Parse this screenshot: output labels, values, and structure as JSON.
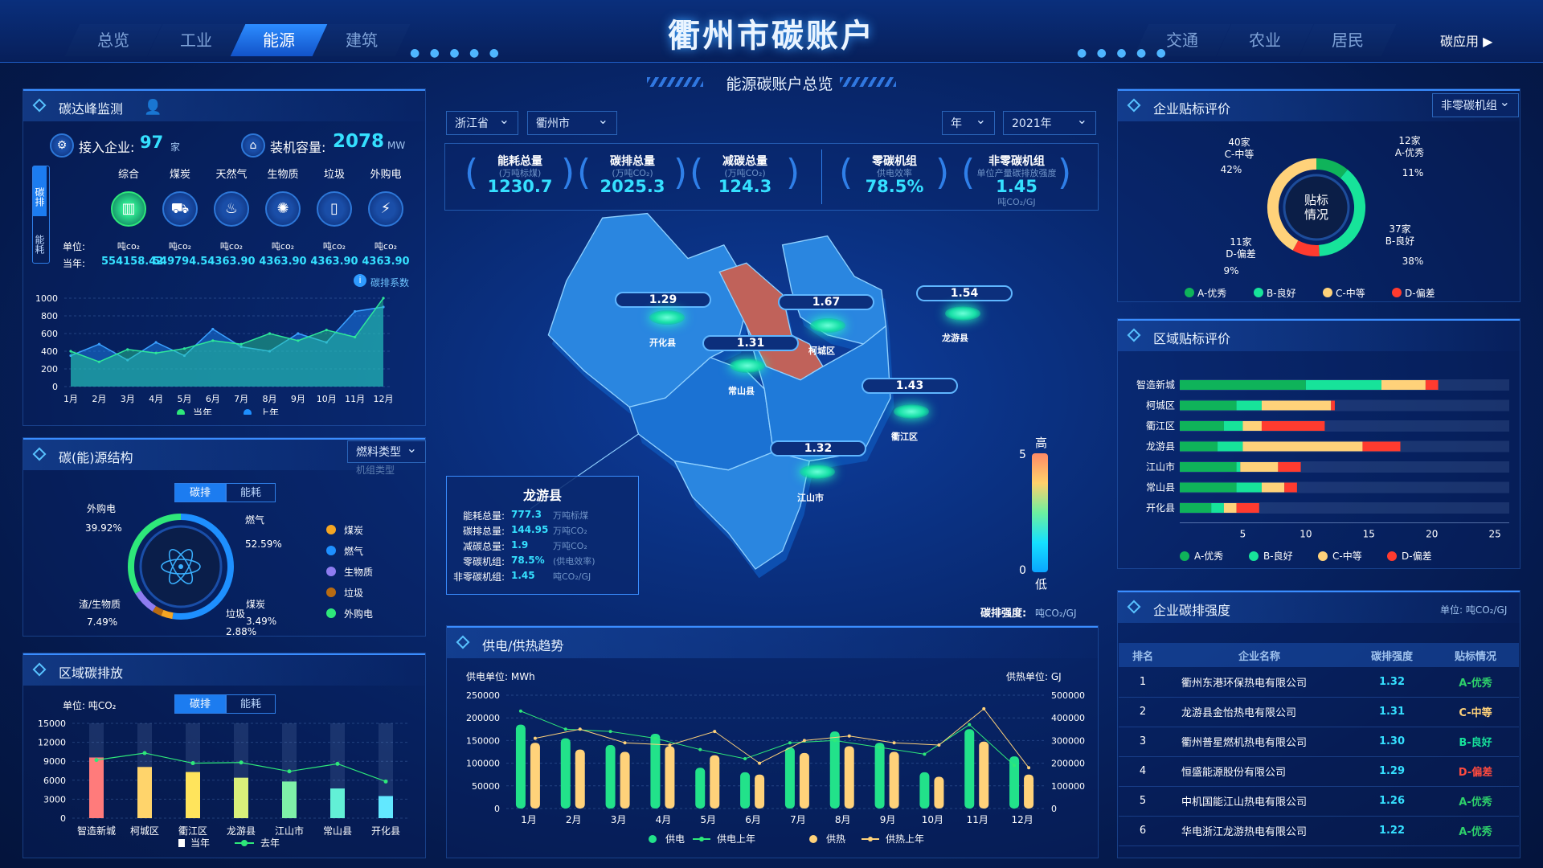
{
  "header": {
    "title": "衢州市碳账户",
    "tabs_left": [
      "总览",
      "工业",
      "能源",
      "建筑"
    ],
    "tabs_right": [
      "交通",
      "农业",
      "居民"
    ],
    "active_tab": "能源",
    "app_link": "碳应用 ▶",
    "subtitle": "能源碳账户总览"
  },
  "carbon_peak": {
    "title": "碳达峰监测",
    "access_label": "接入企业:",
    "access_value": "97",
    "access_unit": "家",
    "capacity_label": "装机容量:",
    "capacity_value": "2078",
    "capacity_unit": "MW",
    "side_tabs": [
      "碳排",
      "能耗"
    ],
    "sources": [
      {
        "name": "综合",
        "icon": "composite-icon",
        "val": "554158.42"
      },
      {
        "name": "煤炭",
        "icon": "coal-icon",
        "val": "549794.5"
      },
      {
        "name": "天然气",
        "icon": "flame-icon",
        "val": "4363.90"
      },
      {
        "name": "生物质",
        "icon": "biomass-icon",
        "val": "4363.90"
      },
      {
        "name": "垃圾",
        "icon": "trash-icon",
        "val": "4363.90"
      },
      {
        "name": "外购电",
        "icon": "lightning-icon",
        "val": "4363.90"
      }
    ],
    "unit_label": "单位:",
    "unit": "吨co₂",
    "current_label": "当年:",
    "coef_label": "碳排系数"
  },
  "trend": {
    "months": [
      "1月",
      "2月",
      "3月",
      "4月",
      "5月",
      "6月",
      "7月",
      "8月",
      "9月",
      "10月",
      "11月",
      "12月"
    ],
    "yticks": [
      "1000",
      "800",
      "600",
      "400",
      "200",
      "0"
    ],
    "current": [
      400,
      280,
      420,
      380,
      430,
      520,
      480,
      600,
      520,
      640,
      560,
      1000
    ],
    "last": [
      350,
      480,
      300,
      500,
      350,
      650,
      450,
      400,
      600,
      500,
      850,
      900
    ],
    "legend": [
      "当年",
      "上年"
    ]
  },
  "structure": {
    "title": "碳(能)源结构",
    "select": "燃料类型",
    "select2": "机组类型",
    "tabs": [
      "碳排",
      "能耗"
    ],
    "slices": [
      {
        "name": "外购电",
        "pct": "39.92%"
      },
      {
        "name": "燃气",
        "pct": "52.59%"
      },
      {
        "name": "煤炭",
        "pct": "3.49%"
      },
      {
        "name": "垃圾",
        "pct": "2.88%"
      },
      {
        "name": "渣/生物质",
        "pct": "7.49%"
      }
    ],
    "legend": [
      {
        "name": "煤炭",
        "color": "#f5a623"
      },
      {
        "name": "燃气",
        "color": "#1e90ff"
      },
      {
        "name": "生物质",
        "color": "#8e7cf0"
      },
      {
        "name": "垃圾",
        "color": "#b86b12"
      },
      {
        "name": "外购电",
        "color": "#2ee87a"
      }
    ]
  },
  "region_emission": {
    "title": "区域碳排放",
    "unit": "单位: 吨CO₂",
    "tabs": [
      "碳排",
      "能耗"
    ],
    "yticks": [
      "15000",
      "12000",
      "9000",
      "6000",
      "3000",
      "0"
    ],
    "regions": [
      "智造新城",
      "柯城区",
      "衢江区",
      "龙游县",
      "江山市",
      "常山县",
      "开化县"
    ],
    "current": [
      9600,
      8100,
      7300,
      6400,
      5800,
      4700,
      3500
    ],
    "last": [
      9200,
      10300,
      8700,
      8800,
      7400,
      8600,
      5800
    ],
    "colors": [
      "#ff7b7b",
      "#ffd46b",
      "#ffe45c",
      "#d9f07a",
      "#7ef0a8",
      "#62f0d6",
      "#62e8ff"
    ],
    "legend": [
      "当年",
      "去年"
    ]
  },
  "filters": {
    "province": "浙江省",
    "city": "衢州市",
    "period": "年",
    "year": "2021年"
  },
  "kpis": [
    {
      "name": "能耗总量",
      "unit": "(万吨标煤)",
      "value": "1230.7"
    },
    {
      "name": "碳排总量",
      "unit": "(万吨CO₂)",
      "value": "2025.3"
    },
    {
      "name": "减碳总量",
      "unit": "(万吨CO₂)",
      "value": "124.3"
    },
    {
      "name": "零碳机组",
      "unit": "供电效率",
      "value": "78.5%"
    },
    {
      "name": "非零碳机组",
      "unit": "单位产量碳排放强度",
      "value": "1.45",
      "sub": "吨CO₂/GJ"
    }
  ],
  "map": {
    "regions": [
      {
        "name": "开化县",
        "val": "1.29"
      },
      {
        "name": "柯城区",
        "val": "1.67"
      },
      {
        "name": "龙游县",
        "val": "1.54"
      },
      {
        "name": "常山县",
        "val": "1.31"
      },
      {
        "name": "衢江区",
        "val": "1.43"
      },
      {
        "name": "江山市",
        "val": "1.32"
      }
    ],
    "scale_high": "高",
    "scale_low": "低",
    "scale_max": "5",
    "scale_min": "0",
    "intensity_label": "碳排强度:",
    "intensity_unit": "吨CO₂/GJ",
    "popup": {
      "title": "龙游县",
      "rows": [
        {
          "k": "能耗总量:",
          "v": "777.3",
          "u": "万吨标煤"
        },
        {
          "k": "碳排总量:",
          "v": "144.95",
          "u": "万吨CO₂"
        },
        {
          "k": "减碳总量:",
          "v": "1.9",
          "u": "万吨CO₂"
        },
        {
          "k": "零碳机组:",
          "v": "78.5%",
          "u": "(供电效率)"
        },
        {
          "k": "非零碳机组:",
          "v": "1.45",
          "u": "吨CO₂/GJ"
        }
      ]
    }
  },
  "supply": {
    "title": "供电/供热趋势",
    "left_unit": "供电单位: MWh",
    "right_unit": "供热单位: GJ",
    "lticks": [
      "250000",
      "200000",
      "150000",
      "100000",
      "50000",
      "0"
    ],
    "rticks": [
      "500000",
      "400000",
      "300000",
      "200000",
      "100000",
      "0"
    ],
    "months": [
      "1月",
      "2月",
      "3月",
      "4月",
      "5月",
      "6月",
      "7月",
      "8月",
      "9月",
      "10月",
      "11月",
      "12月"
    ],
    "power": [
      185000,
      155000,
      140000,
      165000,
      90000,
      80000,
      135000,
      170000,
      145000,
      80000,
      175000,
      115000
    ],
    "heat": [
      290000,
      260000,
      250000,
      275000,
      235000,
      150000,
      245000,
      275000,
      250000,
      140000,
      295000,
      150000
    ],
    "power_last": [
      215000,
      175000,
      170000,
      155000,
      130000,
      110000,
      145000,
      150000,
      135000,
      120000,
      185000,
      95000
    ],
    "heat_last": [
      310000,
      350000,
      290000,
      280000,
      340000,
      200000,
      300000,
      320000,
      290000,
      280000,
      440000,
      180000
    ],
    "legend": [
      "供电",
      "供电上年",
      "供热",
      "供热上年"
    ]
  },
  "enterprise_rating": {
    "title": "企业贴标评价",
    "select": "非零碳机组",
    "center": "贴标\n情况",
    "slices": [
      {
        "label": "12家\nA-优秀",
        "pct": "11%",
        "color": "#0fb35a"
      },
      {
        "label": "37家\nB-良好",
        "pct": "38%",
        "color": "#17e39a"
      },
      {
        "label": "11家\nD-偏差",
        "pct": "9%",
        "color": "#ff3b2f"
      },
      {
        "label": "40家\nC-中等",
        "pct": "42%",
        "color": "#ffd27a"
      }
    ],
    "legend": [
      "A-优秀",
      "B-良好",
      "C-中等",
      "D-偏差"
    ]
  },
  "region_rating": {
    "title": "区域贴标评价",
    "regions": [
      "智造新城",
      "柯城区",
      "衢江区",
      "龙游县",
      "江山市",
      "常山县",
      "开化县"
    ],
    "xticks": [
      "5",
      "10",
      "15",
      "20",
      "25"
    ],
    "rows": [
      [
        10,
        6,
        3.5,
        1
      ],
      [
        4.5,
        2,
        5.5,
        0.3
      ],
      [
        3.5,
        1.5,
        1.5,
        5
      ],
      [
        3,
        2,
        9.5,
        3
      ],
      [
        4.5,
        0.3,
        3,
        1.8
      ],
      [
        4.5,
        2,
        1.8,
        1
      ],
      [
        2.5,
        1,
        1,
        1.8
      ]
    ],
    "legend": [
      "A-优秀",
      "B-良好",
      "C-中等",
      "D-偏差"
    ]
  },
  "intensity_table": {
    "title": "企业碳排强度",
    "unit": "单位: 吨CO₂/GJ",
    "headers": [
      "排名",
      "企业名称",
      "碳排强度",
      "贴标情况"
    ],
    "rows": [
      {
        "rank": "1",
        "name": "衢州东港环保热电有限公司",
        "val": "1.32",
        "tag": "A-优秀",
        "color": "#2ed16b"
      },
      {
        "rank": "2",
        "name": "龙游县金怡热电有限公司",
        "val": "1.31",
        "tag": "C-中等",
        "color": "#ffd27a"
      },
      {
        "rank": "3",
        "name": "衢州普星燃机热电有限公司",
        "val": "1.30",
        "tag": "B-良好",
        "color": "#17e39a"
      },
      {
        "rank": "4",
        "name": "恒盛能源股份有限公司",
        "val": "1.29",
        "tag": "D-偏差",
        "color": "#ff4b3f"
      },
      {
        "rank": "5",
        "name": "中机国能江山热电有限公司",
        "val": "1.26",
        "tag": "A-优秀",
        "color": "#2ed16b"
      },
      {
        "rank": "6",
        "name": "华电浙江龙游热电有限公司",
        "val": "1.22",
        "tag": "A-优秀",
        "color": "#2ed16b"
      }
    ]
  }
}
